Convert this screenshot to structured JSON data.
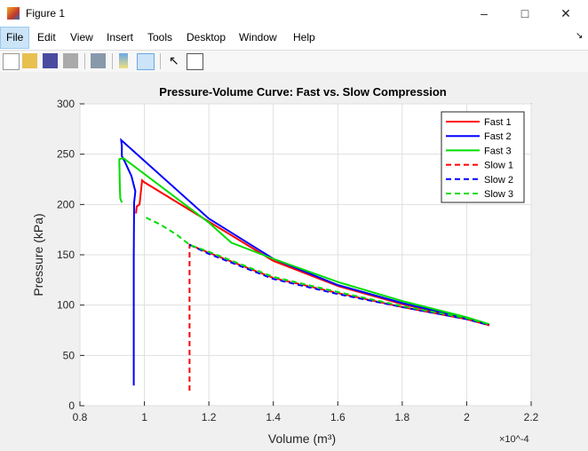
{
  "window": {
    "title": "Figure 1",
    "controls": [
      "minimize",
      "maximize",
      "close"
    ]
  },
  "menu": [
    "File",
    "Edit",
    "View",
    "Insert",
    "Tools",
    "Desktop",
    "Window",
    "Help"
  ],
  "toolbar": [
    "new-figure-icon",
    "open-icon",
    "save-icon",
    "print-icon",
    "link-icon",
    "colorbar-icon",
    "legend-icon",
    "pointer-icon",
    "property-editor-icon"
  ],
  "chart_data": {
    "type": "line",
    "title": "Pressure-Volume Curve: Fast vs. Slow Compression",
    "xlabel": "Volume (m³)",
    "ylabel": "Pressure (kPa)",
    "x_exponent": "×10^-4",
    "xlim": [
      0.8,
      2.2
    ],
    "ylim": [
      0,
      300
    ],
    "xticks": [
      "0.8",
      "1",
      "1.2",
      "1.4",
      "1.6",
      "1.8",
      "2",
      "2.2"
    ],
    "yticks": [
      "0",
      "50",
      "100",
      "150",
      "200",
      "250",
      "300"
    ],
    "grid": true,
    "legend_position": "top-right",
    "series": [
      {
        "name": "Fast 1",
        "color": "#ff0000",
        "style": "solid",
        "x": [
          0.974,
          0.976,
          0.985,
          0.99,
          0.993,
          1.0,
          1.2,
          1.4,
          1.6,
          1.8,
          2.0,
          2.07
        ],
        "y": [
          191,
          198,
          200,
          215,
          224,
          222,
          183,
          144,
          119,
          101,
          86,
          80
        ]
      },
      {
        "name": "Fast 2",
        "color": "#0000ff",
        "style": "solid",
        "x": [
          0.967,
          0.967,
          0.968,
          0.972,
          0.96,
          0.94,
          0.93,
          0.93,
          0.928,
          1.2,
          1.4,
          1.6,
          1.8,
          2.0,
          2.07
        ],
        "y": [
          20,
          150,
          202,
          213,
          228,
          242,
          248,
          258,
          264,
          186,
          146,
          120,
          102,
          87,
          80
        ]
      },
      {
        "name": "Fast 3",
        "color": "#00dd00",
        "style": "solid",
        "x": [
          0.93,
          0.925,
          0.924,
          0.922,
          0.935,
          1.2,
          1.27,
          1.4,
          1.6,
          1.8,
          2.0,
          2.07
        ],
        "y": [
          202,
          206,
          215,
          245,
          246,
          182,
          162,
          146,
          123,
          104,
          88,
          81
        ]
      },
      {
        "name": "Slow 1",
        "color": "#ff0000",
        "style": "dashed",
        "x": [
          1.14,
          1.14,
          1.2,
          1.4,
          1.6,
          1.8,
          2.0,
          2.07
        ],
        "y": [
          15,
          160,
          152,
          127,
          112,
          98,
          86,
          80
        ]
      },
      {
        "name": "Slow 2",
        "color": "#0000ff",
        "style": "dashed",
        "x": [
          1.14,
          1.2,
          1.4,
          1.6,
          1.8,
          2.0,
          2.07
        ],
        "y": [
          160,
          151,
          126,
          111,
          98,
          86,
          80
        ]
      },
      {
        "name": "Slow 3",
        "color": "#00dd00",
        "style": "dashed",
        "x": [
          1.005,
          1.05,
          1.1,
          1.14,
          1.2,
          1.4,
          1.6,
          1.8,
          2.0,
          2.07
        ],
        "y": [
          187,
          180,
          170,
          160,
          153,
          128,
          113,
          99,
          87,
          81
        ]
      }
    ]
  }
}
